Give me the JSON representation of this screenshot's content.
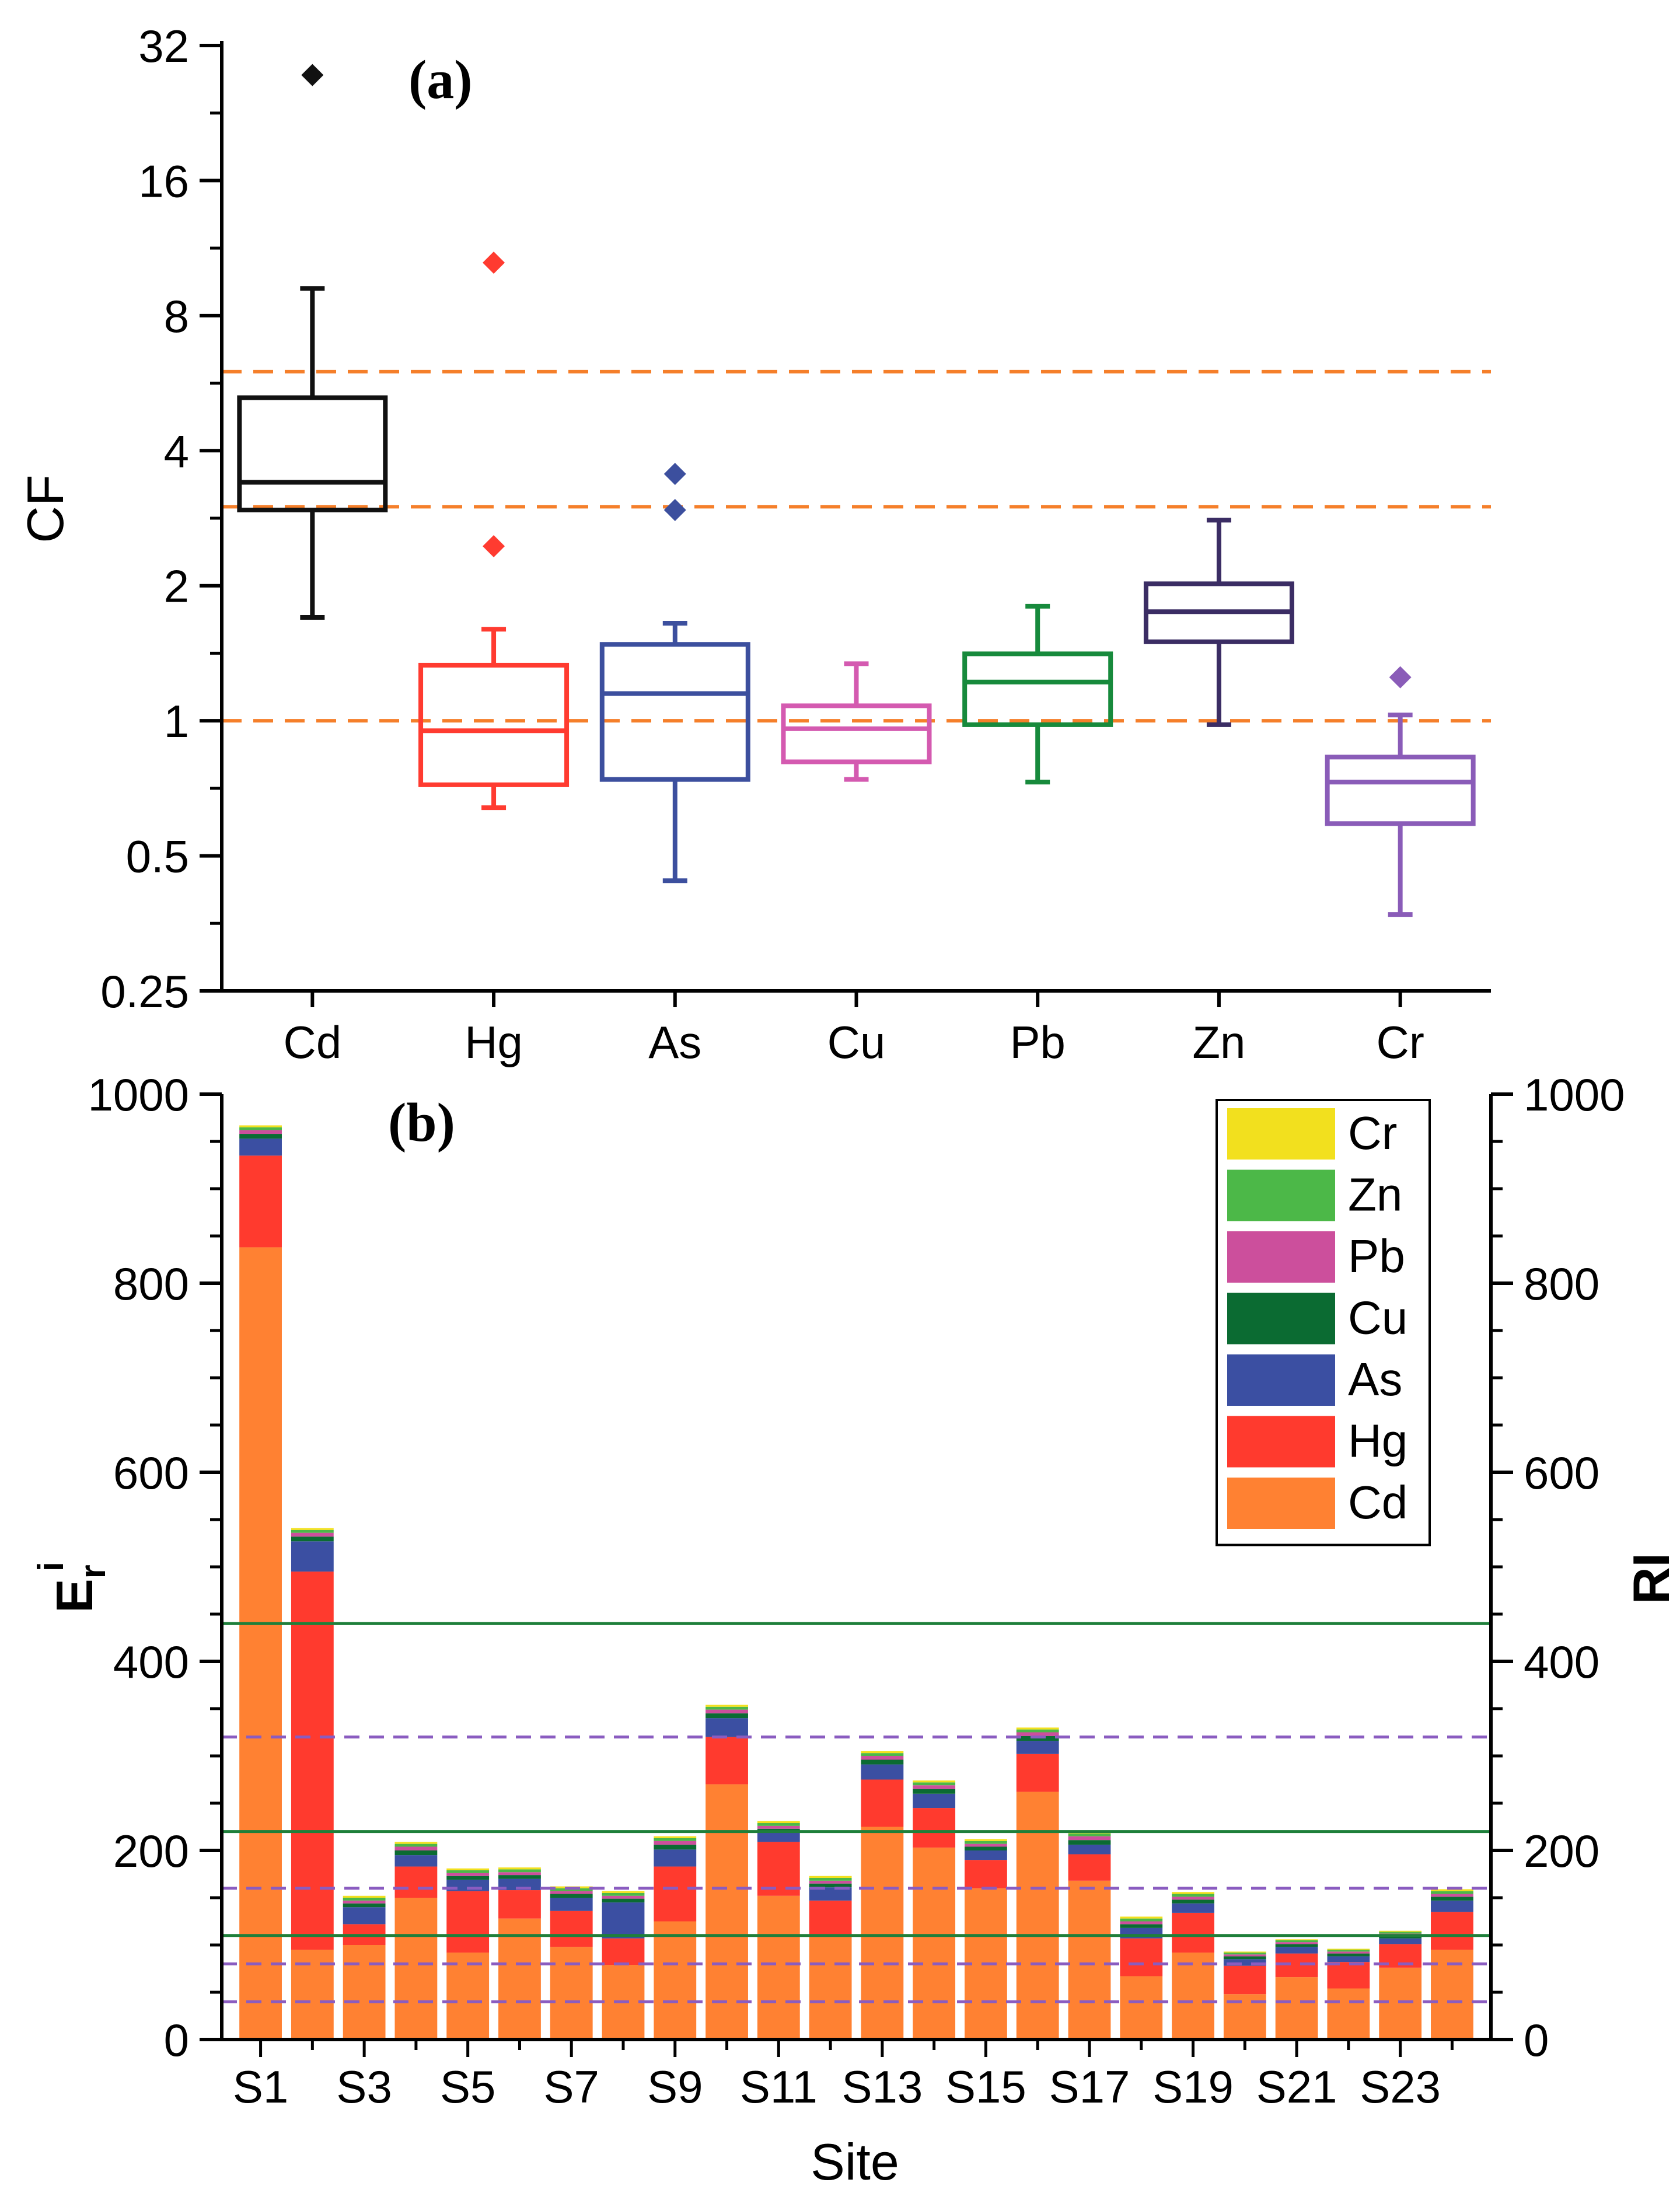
{
  "chart_data": [
    {
      "type": "box",
      "panel_label": "(a)",
      "ylabel": "CF",
      "yscale": "log2",
      "ylim": [
        0.25,
        32
      ],
      "yticks": [
        "0.25",
        "0.5",
        "1",
        "2",
        "4",
        "8",
        "16",
        "32"
      ],
      "ytick_values": [
        0.25,
        0.5,
        1,
        2,
        4,
        8,
        16,
        32
      ],
      "reference_lines": [
        1,
        3,
        6
      ],
      "reference_line_color": "#f57f2a",
      "series": [
        {
          "name": "Cd",
          "color": "#111111",
          "whisker_low": 1.7,
          "q1": 2.95,
          "median": 3.4,
          "q3": 5.25,
          "whisker_high": 9.2,
          "outliers": [
            27.5
          ]
        },
        {
          "name": "Hg",
          "color": "#ff3b30",
          "whisker_low": 0.64,
          "q1": 0.72,
          "median": 0.95,
          "q3": 1.33,
          "whisker_high": 1.6,
          "outliers": [
            2.45,
            10.5
          ]
        },
        {
          "name": "As",
          "color": "#3c4f9e",
          "whisker_low": 0.44,
          "q1": 0.74,
          "median": 1.15,
          "q3": 1.48,
          "whisker_high": 1.65,
          "outliers": [
            2.95,
            3.55
          ]
        },
        {
          "name": "Cu",
          "color": "#d45ab0",
          "whisker_low": 0.74,
          "q1": 0.81,
          "median": 0.96,
          "q3": 1.08,
          "whisker_high": 1.34,
          "outliers": []
        },
        {
          "name": "Pb",
          "color": "#178a3c",
          "whisker_low": 0.73,
          "q1": 0.98,
          "median": 1.22,
          "q3": 1.41,
          "whisker_high": 1.8,
          "outliers": []
        },
        {
          "name": "Zn",
          "color": "#3b2d64",
          "whisker_low": 0.98,
          "q1": 1.5,
          "median": 1.75,
          "q3": 2.02,
          "whisker_high": 2.8,
          "outliers": []
        },
        {
          "name": "Cr",
          "color": "#8a5cb8",
          "whisker_low": 0.37,
          "q1": 0.59,
          "median": 0.73,
          "q3": 0.83,
          "whisker_high": 1.03,
          "outliers": [
            1.25
          ]
        }
      ]
    },
    {
      "type": "stacked_bar",
      "panel_label": "(b)",
      "xlabel": "Site",
      "ylabel_main": "E",
      "ylabel_sub": "r",
      "ylabel_sup": "i",
      "ylabel_right": "RI",
      "ylim": [
        0,
        1000
      ],
      "yticks": [
        "0",
        "200",
        "400",
        "600",
        "800",
        "1000"
      ],
      "ytick_values": [
        0,
        200,
        400,
        600,
        800,
        1000
      ],
      "categories": [
        "S1",
        "S2",
        "S3",
        "S4",
        "S5",
        "S6",
        "S7",
        "S8",
        "S9",
        "S10",
        "S11",
        "S12",
        "S13",
        "S14",
        "S15",
        "S16",
        "S17",
        "S18",
        "S19",
        "S20",
        "S21",
        "S22",
        "S23",
        "S24"
      ],
      "xtick_labels": [
        "S1",
        "S3",
        "S5",
        "S7",
        "S9",
        "S11",
        "S13",
        "S15",
        "S17",
        "S19",
        "S21",
        "S23"
      ],
      "series": [
        {
          "name": "Cd",
          "color": "#ff8132",
          "values": [
            838,
            95,
            100,
            150,
            92,
            128,
            98,
            79,
            125,
            270,
            152,
            110,
            225,
            203,
            160,
            262,
            168,
            67,
            92,
            48,
            66,
            54,
            76,
            95
          ]
        },
        {
          "name": "Hg",
          "color": "#ff3a2e",
          "values": [
            97,
            400,
            22,
            33,
            65,
            30,
            38,
            28,
            58,
            50,
            57,
            37,
            50,
            42,
            30,
            40,
            28,
            40,
            42,
            30,
            25,
            28,
            25,
            40
          ]
        },
        {
          "name": "As",
          "color": "#3b4fa2",
          "values": [
            18,
            32,
            18,
            12,
            12,
            12,
            14,
            38,
            18,
            20,
            10,
            14,
            16,
            15,
            10,
            14,
            10,
            11,
            10,
            7,
            7,
            6,
            6,
            12
          ]
        },
        {
          "name": "Cu",
          "color": "#0b6b32",
          "values": [
            5,
            5,
            4,
            5,
            4,
            4,
            4,
            4,
            5,
            5,
            4,
            4,
            5,
            5,
            4,
            5,
            5,
            4,
            4,
            3,
            3,
            3,
            3,
            4
          ]
        },
        {
          "name": "Pb",
          "color": "#cc4f9c",
          "values": [
            4,
            4,
            3,
            4,
            3,
            3,
            3,
            3,
            4,
            4,
            3,
            3,
            4,
            4,
            3,
            4,
            4,
            3,
            3,
            2,
            2,
            2,
            2,
            3
          ]
        },
        {
          "name": "Zn",
          "color": "#4cb848",
          "values": [
            3,
            3,
            3,
            3,
            3,
            3,
            3,
            3,
            3,
            3,
            3,
            3,
            3,
            3,
            3,
            3,
            3,
            3,
            3,
            2,
            2,
            2,
            2,
            3
          ]
        },
        {
          "name": "Cr",
          "color": "#f2e01e",
          "values": [
            2,
            2,
            2,
            2,
            2,
            2,
            2,
            2,
            2,
            2,
            2,
            2,
            2,
            2,
            2,
            2,
            2,
            2,
            2,
            1,
            1,
            1,
            1,
            2
          ]
        }
      ],
      "reference_lines_solid": [
        110,
        220,
        440
      ],
      "reference_lines_solid_color": "#1e7f3a",
      "reference_lines_dashed": [
        40,
        80,
        160,
        320
      ],
      "reference_lines_dashed_color": "#8a5cc0",
      "legend_position": "top-right",
      "legend_order": [
        "Cr",
        "Zn",
        "Pb",
        "Cu",
        "As",
        "Hg",
        "Cd"
      ]
    }
  ]
}
